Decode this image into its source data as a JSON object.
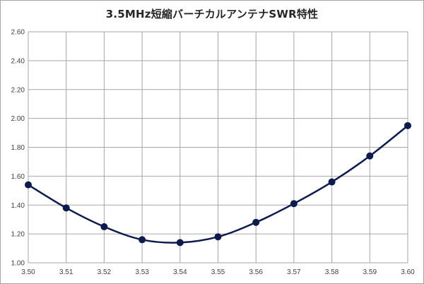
{
  "chart_data": {
    "type": "line",
    "title": "3.5MHz短縮バーチカルアンテナSWR特性",
    "xlabel": "",
    "ylabel": "",
    "x": [
      3.5,
      3.51,
      3.52,
      3.53,
      3.54,
      3.55,
      3.56,
      3.57,
      3.58,
      3.59,
      3.6
    ],
    "x_tick_labels": [
      "3.50",
      "3.51",
      "3.52",
      "3.53",
      "3.54",
      "3.55",
      "3.56",
      "3.57",
      "3.58",
      "3.59",
      "3.60"
    ],
    "y_tick_labels": [
      "1.00",
      "1.20",
      "1.40",
      "1.60",
      "1.80",
      "2.00",
      "2.20",
      "2.40",
      "2.60"
    ],
    "y_ticks": [
      1.0,
      1.2,
      1.4,
      1.6,
      1.8,
      2.0,
      2.2,
      2.4,
      2.6
    ],
    "xlim": [
      3.5,
      3.6
    ],
    "ylim": [
      1.0,
      2.6
    ],
    "grid": true,
    "legend": "none",
    "smooth": true,
    "series": [
      {
        "values": [
          1.54,
          1.38,
          1.25,
          1.16,
          1.14,
          1.18,
          1.28,
          1.41,
          1.56,
          1.74,
          1.95
        ],
        "color": "#0d1b4c",
        "marker": "circle"
      }
    ],
    "grid_color": "#a6a6a6"
  }
}
